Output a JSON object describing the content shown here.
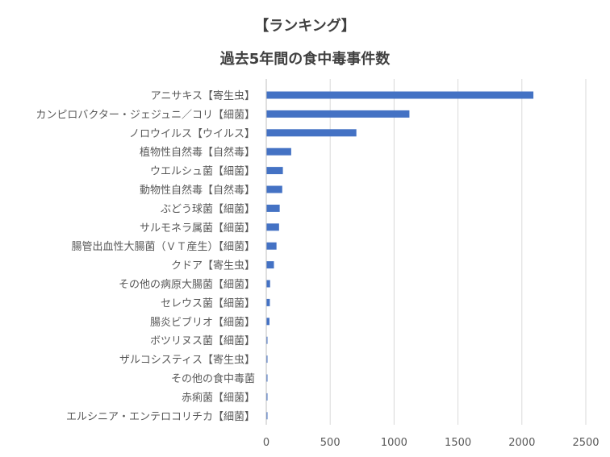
{
  "chart_data": {
    "type": "bar",
    "orientation": "horizontal",
    "title": "【ランキング】",
    "subtitle": "過去5年間の食中毒事件数",
    "xlabel": "",
    "ylabel": "",
    "xlim": [
      0,
      2500
    ],
    "ticks": [
      0,
      500,
      1000,
      1500,
      2000,
      2500
    ],
    "tick_labels": [
      "0",
      "500",
      "1000",
      "1500",
      "2000",
      "2500"
    ],
    "grid": true,
    "legend": "none",
    "bar_color": "#4472c4",
    "categories": [
      "アニサキス【寄生虫】",
      "カンピロバクター・ジェジュニ／コリ【細菌】",
      "ノロウイルス【ウイルス】",
      "植物性自然毒【自然毒】",
      "ウエルシュ菌【細菌】",
      "動物性自然毒【自然毒】",
      "ぶどう球菌【細菌】",
      "サルモネラ属菌【細菌】",
      "腸管出血性大腸菌（ＶＴ産生）【細菌】",
      "クドア【寄生虫】",
      "その他の病原大腸菌【細菌】",
      "セレウス菌【細菌】",
      "腸炎ビブリオ【細菌】",
      "ボツリヌス菌【細菌】",
      "ザルコシスティス【寄生虫】",
      "その他の食中毒菌",
      "赤痢菌【細菌】",
      "エルシニア・エンテロコリチカ【細菌】"
    ],
    "values": [
      2090,
      1120,
      705,
      195,
      130,
      125,
      105,
      100,
      80,
      60,
      30,
      28,
      25,
      8,
      5,
      5,
      4,
      3
    ]
  }
}
